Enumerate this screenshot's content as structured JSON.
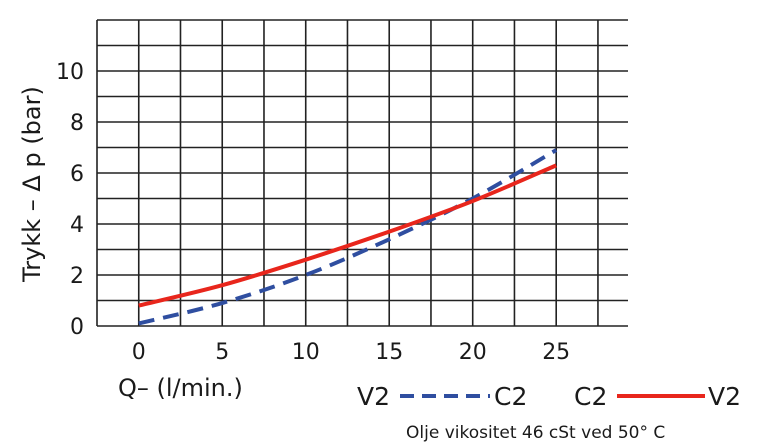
{
  "chart_data": {
    "type": "line",
    "x": [
      0,
      5,
      10,
      15,
      20,
      25
    ],
    "series": [
      {
        "name": "V2 - - - C2",
        "style": "dashed",
        "color": "#2f4ea0",
        "points": [
          [
            0,
            0.1
          ],
          [
            5,
            0.9
          ],
          [
            10,
            2.0
          ],
          [
            15,
            3.4
          ],
          [
            20,
            5.0
          ],
          [
            25,
            6.9
          ]
        ]
      },
      {
        "name": "C2 ——— V2",
        "style": "solid",
        "color": "#e8261c",
        "points": [
          [
            0,
            0.8
          ],
          [
            5,
            1.6
          ],
          [
            10,
            2.6
          ],
          [
            15,
            3.7
          ],
          [
            20,
            4.9
          ],
          [
            25,
            6.3
          ]
        ]
      }
    ],
    "xlabel": "Q– (l/min.)",
    "ylabel": "Trykk – Δ p (bar)",
    "xticks": [
      "0",
      "5",
      "10",
      "15",
      "20",
      "25"
    ],
    "yticks": [
      "0",
      "2",
      "4",
      "6",
      "8",
      "10"
    ],
    "xlim": [
      -2.5,
      29.3
    ],
    "ylim": [
      0,
      12
    ],
    "grid": true,
    "legend": [
      {
        "left": "V2",
        "right": "C2",
        "style": "dashed"
      },
      {
        "left": "C2",
        "right": "V2",
        "style": "solid"
      }
    ],
    "note": "Olje vikositet 46 cSt ved 50° C"
  }
}
